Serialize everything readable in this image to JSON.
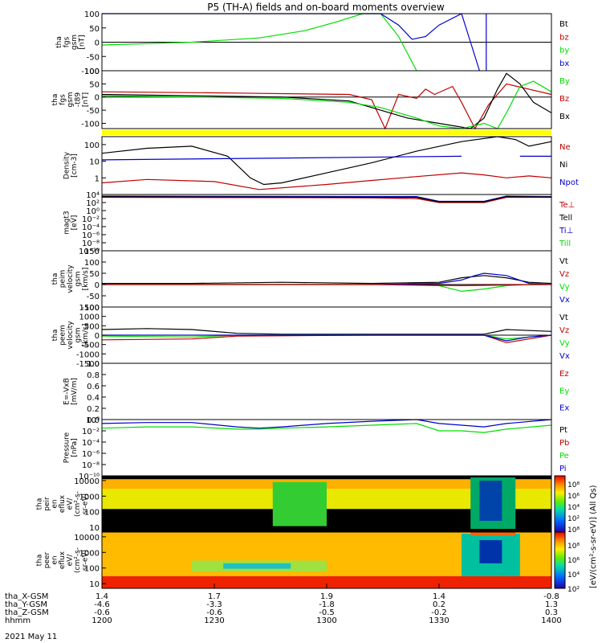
{
  "title": "P5 (TH-A) fields and on-board moments overview",
  "colors": {
    "black": "#000000",
    "red": "#c00000",
    "green": "#00dd00",
    "blue": "#0000cc",
    "yellow": "#ffff00"
  },
  "chart_data": {
    "type": "line",
    "panels": [
      {
        "id": "fgs",
        "ylabel_lines": [
          "tha",
          "fgs",
          "gsm",
          "[nT]"
        ],
        "ylim": [
          -100,
          100
        ],
        "log": false,
        "ticks": [
          "100",
          "50",
          "0",
          "-50",
          "-100"
        ],
        "tick_values": [
          100,
          50,
          0,
          -50,
          -100
        ],
        "legend": [
          {
            "text": "Bt",
            "color": "black"
          },
          {
            "text": "bz",
            "color": "red"
          },
          {
            "text": "by",
            "color": "green"
          },
          {
            "text": "bx",
            "color": "blue"
          }
        ],
        "series": [
          {
            "color": "green",
            "x": [
              0,
              0.2,
              0.35,
              0.45,
              0.52,
              0.58,
              0.62,
              0.66,
              0.7
            ],
            "y": [
              -10,
              0,
              15,
              40,
              70,
              100,
              100,
              20,
              -100
            ]
          },
          {
            "color": "blue",
            "x": [
              0,
              0.05,
              0.1,
              0.62,
              0.66,
              0.69,
              0.72,
              0.75,
              0.8,
              0.84
            ],
            "y": [
              100,
              110,
              120,
              100,
              60,
              10,
              20,
              60,
              100,
              -100
            ]
          },
          {
            "color": "blue",
            "x": [
              0.855,
              0.855
            ],
            "y": [
              100,
              -100
            ]
          }
        ]
      },
      {
        "id": "fgs-t89",
        "ylabel_lines": [
          "tha",
          "fgs",
          "gsm",
          "-t89",
          "[nT]"
        ],
        "ylim": [
          -120,
          100
        ],
        "log": false,
        "ticks": [
          "100",
          "50",
          "0",
          "-50",
          "-100"
        ],
        "tick_values": [
          100,
          50,
          0,
          -50,
          -100
        ],
        "legend": [
          {
            "text": "By",
            "color": "green"
          },
          {
            "text": "Bz",
            "color": "red"
          },
          {
            "text": "Bx",
            "color": "black"
          }
        ],
        "series": [
          {
            "color": "red",
            "x": [
              0,
              0.3,
              0.55,
              0.6,
              0.63,
              0.66,
              0.7,
              0.72,
              0.74,
              0.76,
              0.78,
              0.8,
              0.83,
              0.86,
              0.9,
              0.95,
              1
            ],
            "y": [
              20,
              15,
              10,
              -10,
              -120,
              10,
              -5,
              30,
              10,
              25,
              40,
              -20,
              -120,
              -30,
              50,
              30,
              10
            ]
          },
          {
            "color": "black",
            "x": [
              0,
              0.2,
              0.4,
              0.55,
              0.62,
              0.68,
              0.75,
              0.82,
              0.85,
              0.88,
              0.9,
              0.93,
              0.96,
              1
            ],
            "y": [
              10,
              5,
              0,
              -15,
              -50,
              -80,
              -100,
              -120,
              -80,
              30,
              90,
              50,
              -20,
              -60
            ]
          },
          {
            "color": "green",
            "x": [
              0,
              0.2,
              0.4,
              0.55,
              0.62,
              0.7,
              0.75,
              0.8,
              0.85,
              0.88,
              0.9,
              0.93,
              0.96,
              1
            ],
            "y": [
              5,
              0,
              -5,
              -20,
              -40,
              -80,
              -110,
              -120,
              -100,
              -120,
              -60,
              40,
              60,
              20
            ]
          }
        ]
      },
      {
        "id": "density",
        "ylabel_lines": [
          "Density",
          "[cm-3]"
        ],
        "ylim": [
          0.1,
          300
        ],
        "log": true,
        "ticks": [
          "100",
          "10",
          "1"
        ],
        "tick_values": [
          100,
          10,
          1
        ],
        "legend": [
          {
            "text": "Ne",
            "color": "red"
          },
          {
            "text": "Ni",
            "color": "black"
          },
          {
            "text": "Npot",
            "color": "blue"
          }
        ],
        "series": [
          {
            "color": "black",
            "x": [
              0,
              0.1,
              0.2,
              0.28,
              0.33,
              0.36,
              0.4,
              0.5,
              0.6,
              0.7,
              0.8,
              0.88,
              0.92,
              0.95,
              1
            ],
            "y": [
              30,
              60,
              80,
              20,
              1,
              0.4,
              0.5,
              2,
              8,
              40,
              150,
              300,
              200,
              80,
              150
            ]
          },
          {
            "color": "blue",
            "x": [
              0,
              0.8
            ],
            "y": [
              12,
              20
            ]
          },
          {
            "color": "blue",
            "x": [
              0.93,
              1
            ],
            "y": [
              20,
              20
            ]
          },
          {
            "color": "red",
            "x": [
              0,
              0.1,
              0.25,
              0.35,
              0.5,
              0.6,
              0.7,
              0.8,
              0.85,
              0.9,
              0.95,
              1
            ],
            "y": [
              0.5,
              0.8,
              0.6,
              0.2,
              0.4,
              0.7,
              1.2,
              2,
              1.5,
              1,
              1.3,
              1
            ]
          }
        ]
      },
      {
        "id": "magt3",
        "ylabel_lines": [
          "magt3",
          "[eV]"
        ],
        "ylim": [
          1e-10,
          10000.0
        ],
        "log": true,
        "ticks": [
          "10⁴",
          "10²",
          "10⁰",
          "10⁻²",
          "10⁻⁴",
          "10⁻⁶",
          "10⁻⁸",
          "10⁻¹⁰"
        ],
        "tick_values": [
          10000.0,
          100.0,
          1,
          0.01,
          0.0001,
          1e-06,
          1e-08,
          1e-10
        ],
        "legend": [
          {
            "text": "Te⊥",
            "color": "red"
          },
          {
            "text": "Tell",
            "color": "black"
          },
          {
            "text": "Ti⊥",
            "color": "blue"
          },
          {
            "text": "Till",
            "color": "green"
          }
        ],
        "series": [
          {
            "color": "red",
            "x": [
              0,
              0.6,
              0.7,
              0.75,
              0.85,
              0.9,
              1
            ],
            "y": [
              2000,
              1500,
              1000,
              100,
              100,
              2000,
              2000
            ]
          },
          {
            "color": "blue",
            "x": [
              0,
              0.6,
              0.7,
              0.75,
              0.85,
              0.9,
              1
            ],
            "y": [
              4000,
              3000,
              3000,
              200,
              200,
              4000,
              3000
            ]
          },
          {
            "color": "black",
            "x": [
              0,
              0.6,
              0.7,
              0.75,
              0.85,
              0.9,
              1
            ],
            "y": [
              3000,
              2000,
              2000,
              150,
              150,
              3000,
              2500
            ]
          }
        ]
      },
      {
        "id": "peim",
        "ylabel_lines": [
          "tha",
          "peim",
          "velocity",
          "gsm",
          "[km/s]"
        ],
        "ylim": [
          -100,
          150
        ],
        "log": false,
        "ticks": [
          "150",
          "100",
          "50",
          "0",
          "-50",
          "-100"
        ],
        "tick_values": [
          150,
          100,
          50,
          0,
          -50,
          -100
        ],
        "legend": [
          {
            "text": "Vt",
            "color": "black"
          },
          {
            "text": "Vz",
            "color": "red"
          },
          {
            "text": "Vy",
            "color": "green"
          },
          {
            "text": "Vx",
            "color": "blue"
          }
        ],
        "series": [
          {
            "color": "black",
            "x": [
              0,
              0.2,
              0.4,
              0.6,
              0.75,
              0.8,
              0.85,
              0.9,
              0.95,
              1
            ],
            "y": [
              5,
              5,
              10,
              5,
              10,
              30,
              40,
              30,
              10,
              5
            ]
          },
          {
            "color": "blue",
            "x": [
              0,
              0.6,
              0.75,
              0.8,
              0.83,
              0.85,
              0.9,
              0.95,
              1
            ],
            "y": [
              0,
              0,
              5,
              20,
              40,
              50,
              40,
              5,
              0
            ]
          },
          {
            "color": "green",
            "x": [
              0,
              0.6,
              0.75,
              0.8,
              0.85,
              0.9,
              0.95,
              1
            ],
            "y": [
              0,
              0,
              -5,
              -30,
              -20,
              -5,
              0,
              0
            ]
          },
          {
            "color": "red",
            "x": [
              0,
              0.6,
              0.8,
              0.9,
              1
            ],
            "y": [
              0,
              0,
              -5,
              -2,
              0
            ]
          }
        ]
      },
      {
        "id": "peem",
        "ylabel_lines": [
          "tha",
          "peem",
          "velocity",
          "gsm",
          "[km/s]"
        ],
        "ylim": [
          -1500,
          1500
        ],
        "log": false,
        "ticks": [
          "1500",
          "1000",
          "500",
          "0",
          "-500",
          "-1000",
          "-1500"
        ],
        "tick_values": [
          1500,
          1000,
          500,
          0,
          -500,
          -1000,
          -1500
        ],
        "legend": [
          {
            "text": "Vt",
            "color": "black"
          },
          {
            "text": "Vz",
            "color": "red"
          },
          {
            "text": "Vy",
            "color": "green"
          },
          {
            "text": "Vx",
            "color": "blue"
          }
        ],
        "series": [
          {
            "color": "black",
            "x": [
              0,
              0.1,
              0.2,
              0.3,
              0.4,
              0.6,
              0.85,
              0.9,
              0.95,
              1
            ],
            "y": [
              300,
              350,
              300,
              100,
              50,
              50,
              50,
              300,
              250,
              200
            ]
          },
          {
            "color": "green",
            "x": [
              0,
              0.2,
              0.3,
              0.6,
              0.85,
              0.9,
              0.95,
              1
            ],
            "y": [
              -50,
              -100,
              0,
              0,
              0,
              -200,
              -100,
              0
            ]
          },
          {
            "color": "red",
            "x": [
              0,
              0.2,
              0.3,
              0.6,
              0.85,
              0.9,
              0.95,
              1
            ],
            "y": [
              -250,
              -200,
              -50,
              0,
              0,
              -400,
              -200,
              0
            ]
          },
          {
            "color": "blue",
            "x": [
              0,
              0.6,
              0.85,
              0.9,
              0.95,
              1
            ],
            "y": [
              0,
              0,
              0,
              -300,
              -100,
              0
            ]
          }
        ]
      },
      {
        "id": "efield",
        "ylabel_lines": [
          "E=-VxB",
          "[mV/m]"
        ],
        "ylim": [
          0,
          1
        ],
        "log": false,
        "ticks": [
          "1.0",
          "0.8",
          "0.6",
          "0.4",
          "0.2",
          "0.0"
        ],
        "tick_values": [
          1,
          0.8,
          0.6,
          0.4,
          0.2,
          0
        ],
        "legend": [
          {
            "text": "Ez",
            "color": "red"
          },
          {
            "text": "Ey",
            "color": "green"
          },
          {
            "text": "Ex",
            "color": "blue"
          }
        ],
        "series": []
      },
      {
        "id": "pressure",
        "ylabel_lines": [
          "Pressure",
          "[nPa]"
        ],
        "ylim": [
          1e-10,
          1
        ],
        "log": true,
        "ticks": [
          "10⁰",
          "10⁻²",
          "10⁻⁴",
          "10⁻⁶",
          "10⁻⁸",
          "10⁻¹⁰"
        ],
        "tick_values": [
          1,
          0.01,
          0.0001,
          1e-06,
          1e-08,
          1e-10
        ],
        "legend": [
          {
            "text": "Pt",
            "color": "black"
          },
          {
            "text": "Pb",
            "color": "red"
          },
          {
            "text": "Pe",
            "color": "green"
          },
          {
            "text": "Pi",
            "color": "blue"
          }
        ],
        "series": [
          {
            "color": "blue",
            "x": [
              0,
              0.1,
              0.2,
              0.3,
              0.35,
              0.4,
              0.5,
              0.6,
              0.7,
              0.75,
              0.8,
              0.85,
              0.9,
              1
            ],
            "y": [
              0.2,
              0.3,
              0.3,
              0.05,
              0.03,
              0.05,
              0.2,
              0.5,
              1,
              0.2,
              0.1,
              0.05,
              0.2,
              1
            ]
          },
          {
            "color": "green",
            "x": [
              0,
              0.1,
              0.2,
              0.3,
              0.35,
              0.4,
              0.5,
              0.6,
              0.7,
              0.75,
              0.8,
              0.85,
              0.9,
              1
            ],
            "y": [
              0.03,
              0.05,
              0.05,
              0.02,
              0.02,
              0.03,
              0.05,
              0.1,
              0.2,
              0.01,
              0.01,
              0.005,
              0.02,
              0.1
            ]
          }
        ]
      },
      {
        "id": "peir",
        "ylabel_lines": [
          "tha",
          "peir",
          "en",
          "eflux",
          "eV/",
          "(cm²-s-",
          "sr-eV)"
        ],
        "ylim": [
          5,
          20000
        ],
        "log": true,
        "ticks": [
          "10000",
          "1000",
          "100",
          "10"
        ],
        "tick_values": [
          10000,
          1000,
          100,
          10
        ],
        "spectrogram": "ion"
      },
      {
        "id": "peer",
        "ylabel_lines": [
          "tha",
          "peer",
          "en",
          "eflux",
          "eV/",
          "(cm²-s-",
          "sr-eV)"
        ],
        "ylim": [
          5,
          20000
        ],
        "log": true,
        "ticks": [
          "10000",
          "1000",
          "100",
          "10"
        ],
        "tick_values": [
          10000,
          1000,
          100,
          10
        ],
        "spectrogram": "electron"
      }
    ],
    "colorbar": {
      "label": "[eV/(cm²-s-sr-eV)] (All Qs)",
      "ion_ticks": [
        "10⁸",
        "10⁶",
        "10⁴",
        "10²",
        "10⁸"
      ],
      "electron_ticks": [
        "10⁸",
        "10⁶",
        "10⁴",
        "10²"
      ]
    },
    "x_axis": {
      "rows": [
        {
          "name": "tha_X-GSM",
          "values": [
            "1.4",
            "1.7",
            "1.9",
            "1.4",
            "-0.8"
          ]
        },
        {
          "name": "tha_Y-GSM",
          "values": [
            "-4.6",
            "-3.3",
            "-1.8",
            "0.2",
            "1.3"
          ]
        },
        {
          "name": "tha_Z-GSM",
          "values": [
            "-0.6",
            "-0.6",
            "-0.5",
            "-0.2",
            "0.3"
          ]
        },
        {
          "name": "hhmm",
          "values": [
            "1200",
            "1230",
            "1300",
            "1330",
            "1400"
          ]
        }
      ],
      "date": "2021 May 11"
    }
  }
}
